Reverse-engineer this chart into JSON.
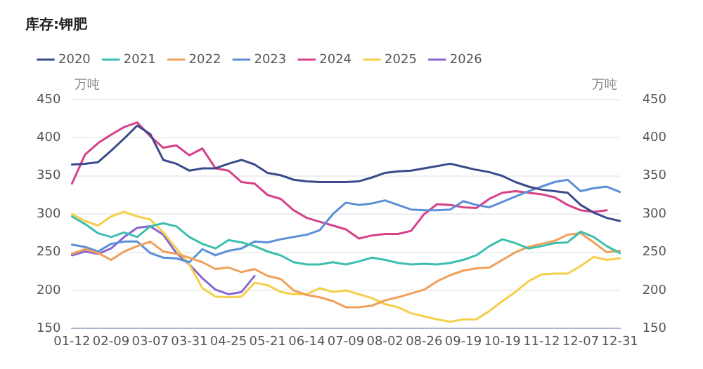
{
  "chart_data": {
    "type": "line",
    "title": "库存:钾肥",
    "ylabel": "万吨",
    "y2label": "万吨",
    "categories": [
      "01-12",
      null,
      null,
      "02-09",
      null,
      null,
      "03-07",
      null,
      null,
      "03-31",
      null,
      null,
      "04-25",
      null,
      null,
      "05-21",
      null,
      null,
      "06-14",
      null,
      null,
      "07-09",
      null,
      null,
      "08-02",
      null,
      null,
      "08-26",
      null,
      null,
      "09-19",
      null,
      null,
      "10-19",
      null,
      null,
      "11-12",
      null,
      null,
      "12-07",
      null,
      null,
      "12-31"
    ],
    "series": [
      {
        "name": "2020",
        "color": "#3b4a8c",
        "values": [
          365,
          366,
          368,
          383,
          399,
          416,
          405,
          371,
          366,
          357,
          360,
          360,
          366,
          371,
          365,
          354,
          351,
          345,
          343,
          342,
          342,
          342,
          343,
          348,
          354,
          356,
          357,
          360,
          363,
          366,
          362,
          358,
          355,
          350,
          342,
          336,
          332,
          330,
          328,
          312,
          302,
          295,
          291
        ]
      },
      {
        "name": "2021",
        "color": "#3cbfae",
        "values": [
          297,
          287,
          275,
          270,
          276,
          270,
          284,
          288,
          284,
          270,
          261,
          255,
          266,
          263,
          258,
          251,
          246,
          237,
          234,
          234,
          237,
          234,
          238,
          243,
          240,
          236,
          234,
          235,
          234,
          236,
          240,
          246,
          258,
          267,
          262,
          255,
          258,
          262,
          263,
          277,
          270,
          258,
          249
        ]
      },
      {
        "name": "2022",
        "color": "#f0a05a",
        "values": [
          248,
          254,
          249,
          240,
          251,
          258,
          264,
          251,
          248,
          243,
          237,
          228,
          230,
          224,
          228,
          219,
          215,
          200,
          194,
          191,
          186,
          178,
          178,
          180,
          187,
          191,
          196,
          201,
          212,
          220,
          226,
          229,
          230,
          240,
          250,
          257,
          261,
          265,
          273,
          275,
          263,
          250,
          252
        ]
      },
      {
        "name": "2023",
        "color": "#5b8fd6",
        "values": [
          260,
          257,
          251,
          261,
          264,
          264,
          249,
          243,
          242,
          237,
          254,
          246,
          252,
          255,
          264,
          263,
          267,
          270,
          273,
          279,
          300,
          315,
          312,
          314,
          318,
          312,
          306,
          305,
          305,
          306,
          317,
          312,
          309,
          316,
          323,
          330,
          336,
          342,
          345,
          330,
          334,
          336,
          329
        ]
      },
      {
        "name": "2024",
        "color": "#d6418a",
        "values": [
          340,
          378,
          393,
          404,
          414,
          420,
          402,
          387,
          390,
          377,
          386,
          360,
          357,
          342,
          340,
          325,
          320,
          305,
          295,
          290,
          285,
          280,
          268,
          272,
          274,
          274,
          278,
          300,
          313,
          312,
          309,
          308,
          320,
          328,
          330,
          328,
          326,
          322,
          312,
          305,
          303,
          305,
          null
        ]
      },
      {
        "name": "2025",
        "color": "#f5cf4a",
        "values": [
          300,
          291,
          285,
          297,
          303,
          297,
          293,
          276,
          255,
          234,
          203,
          192,
          191,
          192,
          210,
          207,
          198,
          195,
          195,
          203,
          198,
          200,
          195,
          190,
          182,
          178,
          170,
          166,
          162,
          159,
          162,
          162,
          173,
          186,
          198,
          212,
          221,
          222,
          222,
          232,
          244,
          240,
          242
        ]
      },
      {
        "name": "2026",
        "color": "#8566d4",
        "values": [
          246,
          251,
          248,
          255,
          270,
          282,
          284,
          273,
          249,
          234,
          216,
          201,
          195,
          198,
          219,
          null,
          null,
          null,
          null,
          null,
          null,
          null,
          null,
          null,
          null,
          null,
          null,
          null,
          null,
          null,
          null,
          null,
          null,
          null,
          null,
          null,
          null,
          null,
          null,
          null,
          null,
          null,
          null
        ]
      }
    ],
    "ylim": [
      150,
      450
    ],
    "yticks": [
      150,
      200,
      250,
      300,
      350,
      400,
      450
    ],
    "y2lim": [
      150,
      450
    ],
    "y2ticks": [
      150,
      200,
      250,
      300,
      350,
      400,
      450
    ],
    "grid": "y",
    "legend": "top left",
    "marker": "none",
    "line_style": "solid"
  }
}
